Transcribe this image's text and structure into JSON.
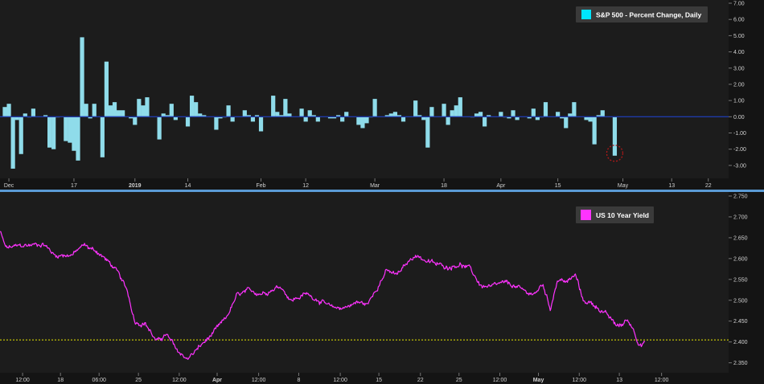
{
  "colors": {
    "background": "#1c1c1c",
    "axis_panel": "#141414",
    "divider": "#5b9bd5",
    "bar": "#8fdcea",
    "zero_line": "#1f3aa8",
    "yield_line": "#ff33ff",
    "yield_ref_line": "#e8e800",
    "highlight_circle": "#b01818",
    "legend_bg": "#3a3a3a"
  },
  "chart_data": [
    {
      "type": "bar",
      "legend": "S&P 500 - Percent Change, Daily",
      "legend_swatch": "#00e5ff",
      "legend_position": "top-right",
      "ylim": [
        -3.5,
        7.0
      ],
      "y_ticks": [
        7.0,
        6.0,
        5.0,
        4.0,
        3.0,
        2.0,
        1.0,
        0.0,
        -1.0,
        -2.0,
        -3.0
      ],
      "y_tick_labels": [
        "7.00",
        "6.00",
        "5.00",
        "4.00",
        "3.00",
        "2.00",
        "1.00",
        "0.00",
        "-1.00",
        "-2.00",
        "-3.00"
      ],
      "x_tick_labels": [
        {
          "label": "Dec",
          "day": 0,
          "bold": false
        },
        {
          "label": "17",
          "day": 16,
          "bold": false
        },
        {
          "label": "2019",
          "day": 31,
          "bold": true
        },
        {
          "label": "14",
          "day": 44,
          "bold": false
        },
        {
          "label": "Feb",
          "day": 62,
          "bold": false
        },
        {
          "label": "12",
          "day": 73,
          "bold": false
        },
        {
          "label": "Mar",
          "day": 90,
          "bold": false
        },
        {
          "label": "18",
          "day": 107,
          "bold": false
        },
        {
          "label": "Apr",
          "day": 121,
          "bold": false
        },
        {
          "label": "15",
          "day": 135,
          "bold": false
        },
        {
          "label": "May",
          "day": 151,
          "bold": false
        },
        {
          "label": "13",
          "day": 163,
          "bold": false
        },
        {
          "label": "22",
          "day": 172,
          "bold": false
        }
      ],
      "x_range_days": [
        -1,
        177
      ],
      "bars": [
        {
          "day": -1,
          "value": 0.6
        },
        {
          "day": 0,
          "value": 0.8
        },
        {
          "day": 1,
          "value": -3.2
        },
        {
          "day": 2,
          "value": -0.2
        },
        {
          "day": 3,
          "value": -2.3
        },
        {
          "day": 4,
          "value": 0.2
        },
        {
          "day": 5,
          "value": 0.0
        },
        {
          "day": 6,
          "value": 0.5
        },
        {
          "day": 9,
          "value": 0.1
        },
        {
          "day": 10,
          "value": -1.9
        },
        {
          "day": 11,
          "value": -2.0
        },
        {
          "day": 12,
          "value": 0.0
        },
        {
          "day": 14,
          "value": -1.5
        },
        {
          "day": 15,
          "value": -1.6
        },
        {
          "day": 16,
          "value": -2.1
        },
        {
          "day": 17,
          "value": -2.7
        },
        {
          "day": 18,
          "value": 4.9
        },
        {
          "day": 19,
          "value": 0.8
        },
        {
          "day": 20,
          "value": -0.1
        },
        {
          "day": 21,
          "value": 0.8
        },
        {
          "day": 23,
          "value": -2.5
        },
        {
          "day": 24,
          "value": 3.4
        },
        {
          "day": 25,
          "value": 0.7
        },
        {
          "day": 26,
          "value": 0.9
        },
        {
          "day": 27,
          "value": 0.4
        },
        {
          "day": 28,
          "value": 0.4
        },
        {
          "day": 30,
          "value": -0.1
        },
        {
          "day": 31,
          "value": -0.5
        },
        {
          "day": 32,
          "value": 1.1
        },
        {
          "day": 33,
          "value": 0.7
        },
        {
          "day": 34,
          "value": 1.2
        },
        {
          "day": 37,
          "value": -1.4
        },
        {
          "day": 38,
          "value": 0.2
        },
        {
          "day": 39,
          "value": 0.1
        },
        {
          "day": 40,
          "value": 0.8
        },
        {
          "day": 41,
          "value": -0.2
        },
        {
          "day": 44,
          "value": -0.6
        },
        {
          "day": 45,
          "value": 1.3
        },
        {
          "day": 46,
          "value": 0.9
        },
        {
          "day": 47,
          "value": 0.2
        },
        {
          "day": 48,
          "value": 0.1
        },
        {
          "day": 51,
          "value": -0.8
        },
        {
          "day": 52,
          "value": -0.1
        },
        {
          "day": 53,
          "value": 0.0
        },
        {
          "day": 54,
          "value": 0.7
        },
        {
          "day": 55,
          "value": -0.3
        },
        {
          "day": 58,
          "value": 0.4
        },
        {
          "day": 59,
          "value": 0.1
        },
        {
          "day": 60,
          "value": -0.3
        },
        {
          "day": 61,
          "value": 0.1
        },
        {
          "day": 62,
          "value": -0.9
        },
        {
          "day": 65,
          "value": 1.3
        },
        {
          "day": 66,
          "value": 0.3
        },
        {
          "day": 67,
          "value": 0.1
        },
        {
          "day": 68,
          "value": 1.1
        },
        {
          "day": 69,
          "value": 0.2
        },
        {
          "day": 72,
          "value": 0.5
        },
        {
          "day": 73,
          "value": -0.3
        },
        {
          "day": 74,
          "value": 0.4
        },
        {
          "day": 75,
          "value": 0.1
        },
        {
          "day": 76,
          "value": -0.3
        },
        {
          "day": 79,
          "value": -0.1
        },
        {
          "day": 80,
          "value": -0.1
        },
        {
          "day": 81,
          "value": 0.1
        },
        {
          "day": 82,
          "value": -0.3
        },
        {
          "day": 83,
          "value": 0.3
        },
        {
          "day": 86,
          "value": -0.5
        },
        {
          "day": 87,
          "value": -0.7
        },
        {
          "day": 88,
          "value": -0.4
        },
        {
          "day": 89,
          "value": 0.0
        },
        {
          "day": 90,
          "value": 1.1
        },
        {
          "day": 93,
          "value": 0.1
        },
        {
          "day": 94,
          "value": 0.2
        },
        {
          "day": 95,
          "value": 0.3
        },
        {
          "day": 96,
          "value": 0.1
        },
        {
          "day": 97,
          "value": -0.3
        },
        {
          "day": 100,
          "value": 1.0
        },
        {
          "day": 101,
          "value": 0.1
        },
        {
          "day": 102,
          "value": -0.2
        },
        {
          "day": 103,
          "value": -1.9
        },
        {
          "day": 104,
          "value": 0.6
        },
        {
          "day": 107,
          "value": 0.8
        },
        {
          "day": 108,
          "value": -0.5
        },
        {
          "day": 109,
          "value": 0.4
        },
        {
          "day": 110,
          "value": 0.7
        },
        {
          "day": 111,
          "value": 1.2
        },
        {
          "day": 114,
          "value": 0.0
        },
        {
          "day": 115,
          "value": 0.2
        },
        {
          "day": 116,
          "value": 0.3
        },
        {
          "day": 117,
          "value": -0.6
        },
        {
          "day": 118,
          "value": 0.1
        },
        {
          "day": 121,
          "value": 0.3
        },
        {
          "day": 122,
          "value": 0.0
        },
        {
          "day": 123,
          "value": -0.1
        },
        {
          "day": 124,
          "value": 0.4
        },
        {
          "day": 125,
          "value": -0.2
        },
        {
          "day": 128,
          "value": -0.1
        },
        {
          "day": 129,
          "value": 0.5
        },
        {
          "day": 130,
          "value": -0.2
        },
        {
          "day": 131,
          "value": 0.0
        },
        {
          "day": 132,
          "value": 0.9
        },
        {
          "day": 135,
          "value": 0.3
        },
        {
          "day": 136,
          "value": -0.1
        },
        {
          "day": 137,
          "value": -0.7
        },
        {
          "day": 138,
          "value": 0.2
        },
        {
          "day": 139,
          "value": 0.9
        },
        {
          "day": 142,
          "value": -0.2
        },
        {
          "day": 143,
          "value": -0.3
        },
        {
          "day": 144,
          "value": -1.7
        },
        {
          "day": 145,
          "value": 0.1
        },
        {
          "day": 146,
          "value": 0.4
        },
        {
          "day": 149,
          "value": -2.4
        }
      ],
      "highlight": {
        "day": 149,
        "value": -2.4
      }
    },
    {
      "type": "line",
      "legend": "US 10 Year Yield",
      "legend_swatch": "#ff33ff",
      "legend_position": "top-right",
      "ylim": [
        2.33,
        2.75
      ],
      "y_ticks": [
        2.75,
        2.7,
        2.65,
        2.6,
        2.55,
        2.5,
        2.45,
        2.4,
        2.35
      ],
      "y_tick_labels": [
        "2.750",
        "2.700",
        "2.650",
        "2.600",
        "2.550",
        "2.500",
        "2.450",
        "2.400",
        "2.350"
      ],
      "reference_line": 2.405,
      "x_tick_labels": [
        "12:00",
        "18",
        "06:00",
        "25",
        "12:00",
        "Apr",
        "12:00",
        "8",
        "12:00",
        "15",
        "22",
        "25",
        "12:00",
        "May",
        "12:00",
        "13",
        "12:00"
      ],
      "x_tick_bold": [
        false,
        false,
        false,
        false,
        false,
        true,
        false,
        false,
        false,
        false,
        false,
        false,
        false,
        true,
        false,
        false,
        false
      ],
      "x_tick_pos": [
        0.031,
        0.083,
        0.136,
        0.19,
        0.246,
        0.298,
        0.355,
        0.41,
        0.467,
        0.52,
        0.577,
        0.63,
        0.686,
        0.739,
        0.795,
        0.85,
        0.908
      ],
      "keypoints": [
        {
          "t": 0.0,
          "y": 2.665
        },
        {
          "t": 0.008,
          "y": 2.625
        },
        {
          "t": 0.03,
          "y": 2.63
        },
        {
          "t": 0.06,
          "y": 2.636
        },
        {
          "t": 0.075,
          "y": 2.608
        },
        {
          "t": 0.1,
          "y": 2.61
        },
        {
          "t": 0.115,
          "y": 2.632
        },
        {
          "t": 0.135,
          "y": 2.615
        },
        {
          "t": 0.15,
          "y": 2.59
        },
        {
          "t": 0.16,
          "y": 2.57
        },
        {
          "t": 0.175,
          "y": 2.52
        },
        {
          "t": 0.185,
          "y": 2.45
        },
        {
          "t": 0.2,
          "y": 2.445
        },
        {
          "t": 0.215,
          "y": 2.4
        },
        {
          "t": 0.228,
          "y": 2.418
        },
        {
          "t": 0.235,
          "y": 2.4
        },
        {
          "t": 0.245,
          "y": 2.375
        },
        {
          "t": 0.258,
          "y": 2.36
        },
        {
          "t": 0.275,
          "y": 2.39
        },
        {
          "t": 0.29,
          "y": 2.415
        },
        {
          "t": 0.31,
          "y": 2.455
        },
        {
          "t": 0.325,
          "y": 2.51
        },
        {
          "t": 0.34,
          "y": 2.52
        },
        {
          "t": 0.36,
          "y": 2.518
        },
        {
          "t": 0.385,
          "y": 2.535
        },
        {
          "t": 0.4,
          "y": 2.5
        },
        {
          "t": 0.42,
          "y": 2.515
        },
        {
          "t": 0.44,
          "y": 2.5
        },
        {
          "t": 0.455,
          "y": 2.48
        },
        {
          "t": 0.47,
          "y": 2.482
        },
        {
          "t": 0.49,
          "y": 2.495
        },
        {
          "t": 0.505,
          "y": 2.49
        },
        {
          "t": 0.515,
          "y": 2.525
        },
        {
          "t": 0.53,
          "y": 2.57
        },
        {
          "t": 0.545,
          "y": 2.56
        },
        {
          "t": 0.555,
          "y": 2.58
        },
        {
          "t": 0.57,
          "y": 2.61
        },
        {
          "t": 0.585,
          "y": 2.595
        },
        {
          "t": 0.6,
          "y": 2.585
        },
        {
          "t": 0.615,
          "y": 2.58
        },
        {
          "t": 0.63,
          "y": 2.588
        },
        {
          "t": 0.645,
          "y": 2.575
        },
        {
          "t": 0.66,
          "y": 2.535
        },
        {
          "t": 0.675,
          "y": 2.53
        },
        {
          "t": 0.69,
          "y": 2.54
        },
        {
          "t": 0.705,
          "y": 2.535
        },
        {
          "t": 0.72,
          "y": 2.52
        },
        {
          "t": 0.735,
          "y": 2.515
        },
        {
          "t": 0.745,
          "y": 2.54
        },
        {
          "t": 0.755,
          "y": 2.48
        },
        {
          "t": 0.765,
          "y": 2.55
        },
        {
          "t": 0.78,
          "y": 2.545
        },
        {
          "t": 0.79,
          "y": 2.56
        },
        {
          "t": 0.8,
          "y": 2.5
        },
        {
          "t": 0.815,
          "y": 2.49
        },
        {
          "t": 0.83,
          "y": 2.47
        },
        {
          "t": 0.845,
          "y": 2.44
        },
        {
          "t": 0.855,
          "y": 2.44
        },
        {
          "t": 0.86,
          "y": 2.455
        },
        {
          "t": 0.87,
          "y": 2.43
        },
        {
          "t": 0.875,
          "y": 2.405
        },
        {
          "t": 0.88,
          "y": 2.395
        },
        {
          "t": 0.885,
          "y": 2.4
        }
      ]
    }
  ]
}
